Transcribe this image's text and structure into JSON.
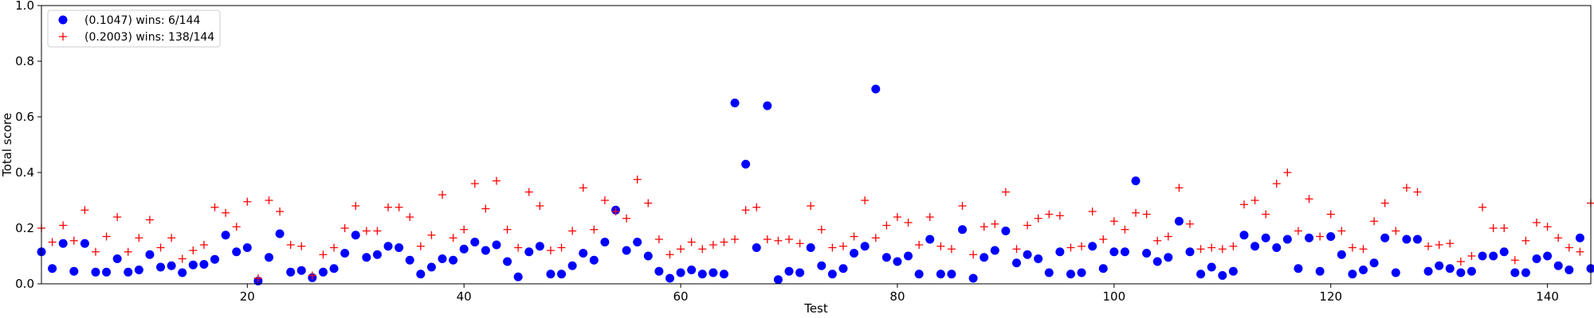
{
  "chart_data": {
    "type": "scatter",
    "xlabel": "Test",
    "ylabel": "Total score",
    "xlim": [
      1,
      144
    ],
    "ylim": [
      0,
      1
    ],
    "xticks": [
      20,
      40,
      60,
      80,
      100,
      120,
      140
    ],
    "yticks": [
      0.0,
      0.2,
      0.4,
      0.6,
      0.8,
      1.0
    ],
    "ytick_labels": [
      "0.0",
      "0.2",
      "0.4",
      "0.6",
      "0.8",
      "1.0"
    ],
    "grid": false,
    "legend_position": "top-left",
    "series": [
      {
        "name": "(0.1047) wins: 6/144",
        "marker": "circle",
        "color": "#0000ff",
        "x": [
          1,
          2,
          3,
          4,
          5,
          6,
          7,
          8,
          9,
          10,
          11,
          12,
          13,
          14,
          15,
          16,
          17,
          18,
          19,
          20,
          21,
          22,
          23,
          24,
          25,
          26,
          27,
          28,
          29,
          30,
          31,
          32,
          33,
          34,
          35,
          36,
          37,
          38,
          39,
          40,
          41,
          42,
          43,
          44,
          45,
          46,
          47,
          48,
          49,
          50,
          51,
          52,
          53,
          54,
          55,
          56,
          57,
          58,
          59,
          60,
          61,
          62,
          63,
          64,
          65,
          66,
          67,
          68,
          69,
          70,
          71,
          72,
          73,
          74,
          75,
          76,
          77,
          78,
          79,
          80,
          81,
          82,
          83,
          84,
          85,
          86,
          87,
          88,
          89,
          90,
          91,
          92,
          93,
          94,
          95,
          96,
          97,
          98,
          99,
          100,
          101,
          102,
          103,
          104,
          105,
          106,
          107,
          108,
          109,
          110,
          111,
          112,
          113,
          114,
          115,
          116,
          117,
          118,
          119,
          120,
          121,
          122,
          123,
          124,
          125,
          126,
          127,
          128,
          129,
          130,
          131,
          132,
          133,
          134,
          135,
          136,
          137,
          138,
          139,
          140,
          141,
          142,
          143,
          144
        ],
        "y": [
          0.115,
          0.055,
          0.145,
          0.045,
          0.145,
          0.042,
          0.042,
          0.09,
          0.042,
          0.05,
          0.105,
          0.06,
          0.065,
          0.04,
          0.068,
          0.07,
          0.088,
          0.175,
          0.115,
          0.13,
          0.01,
          0.095,
          0.18,
          0.042,
          0.048,
          0.022,
          0.042,
          0.055,
          0.11,
          0.175,
          0.095,
          0.105,
          0.135,
          0.13,
          0.085,
          0.035,
          0.06,
          0.09,
          0.085,
          0.125,
          0.15,
          0.12,
          0.14,
          0.08,
          0.025,
          0.115,
          0.135,
          0.035,
          0.035,
          0.065,
          0.11,
          0.085,
          0.15,
          0.265,
          0.12,
          0.15,
          0.1,
          0.045,
          0.02,
          0.04,
          0.05,
          0.035,
          0.04,
          0.035,
          0.65,
          0.43,
          0.13,
          0.64,
          0.015,
          0.045,
          0.04,
          0.13,
          0.065,
          0.035,
          0.055,
          0.11,
          0.135,
          0.7,
          0.095,
          0.08,
          0.1,
          0.035,
          0.16,
          0.035,
          0.035,
          0.195,
          0.02,
          0.095,
          0.12,
          0.19,
          0.075,
          0.105,
          0.09,
          0.04,
          0.115,
          0.035,
          0.04,
          0.135,
          0.055,
          0.115,
          0.115,
          0.37,
          0.11,
          0.08,
          0.095,
          0.225,
          0.115,
          0.035,
          0.06,
          0.03,
          0.045,
          0.175,
          0.135,
          0.165,
          0.13,
          0.16,
          0.055,
          0.165,
          0.045,
          0.17,
          0.105,
          0.035,
          0.05,
          0.075,
          0.165,
          0.04,
          0.16,
          0.16,
          0.045,
          0.065,
          0.055,
          0.04,
          0.045,
          0.1,
          0.1,
          0.115,
          0.04,
          0.04,
          0.09,
          0.1,
          0.065,
          0.05,
          0.165,
          0.055
        ]
      },
      {
        "name": "(0.2003) wins: 138/144",
        "marker": "plus",
        "color": "#ff0000",
        "x": [
          1,
          2,
          3,
          4,
          5,
          6,
          7,
          8,
          9,
          10,
          11,
          12,
          13,
          14,
          15,
          16,
          17,
          18,
          19,
          20,
          21,
          22,
          23,
          24,
          25,
          26,
          27,
          28,
          29,
          30,
          31,
          32,
          33,
          34,
          35,
          36,
          37,
          38,
          39,
          40,
          41,
          42,
          43,
          44,
          45,
          46,
          47,
          48,
          49,
          50,
          51,
          52,
          53,
          54,
          55,
          56,
          57,
          58,
          59,
          60,
          61,
          62,
          63,
          64,
          65,
          66,
          67,
          68,
          69,
          70,
          71,
          72,
          73,
          74,
          75,
          76,
          77,
          78,
          79,
          80,
          81,
          82,
          83,
          84,
          85,
          86,
          87,
          88,
          89,
          90,
          91,
          92,
          93,
          94,
          95,
          96,
          97,
          98,
          99,
          100,
          101,
          102,
          103,
          104,
          105,
          106,
          107,
          108,
          109,
          110,
          111,
          112,
          113,
          114,
          115,
          116,
          117,
          118,
          119,
          120,
          121,
          122,
          123,
          124,
          125,
          126,
          127,
          128,
          129,
          130,
          131,
          132,
          133,
          134,
          135,
          136,
          137,
          138,
          139,
          140,
          141,
          142,
          143,
          144
        ],
        "y": [
          0.2,
          0.15,
          0.21,
          0.155,
          0.265,
          0.115,
          0.17,
          0.24,
          0.115,
          0.165,
          0.23,
          0.13,
          0.165,
          0.09,
          0.12,
          0.14,
          0.275,
          0.255,
          0.205,
          0.295,
          0.02,
          0.3,
          0.26,
          0.14,
          0.135,
          0.03,
          0.105,
          0.13,
          0.2,
          0.28,
          0.19,
          0.19,
          0.275,
          0.275,
          0.24,
          0.135,
          0.175,
          0.32,
          0.165,
          0.195,
          0.36,
          0.27,
          0.37,
          0.195,
          0.13,
          0.33,
          0.28,
          0.12,
          0.13,
          0.19,
          0.345,
          0.195,
          0.3,
          0.26,
          0.235,
          0.375,
          0.29,
          0.16,
          0.105,
          0.125,
          0.15,
          0.125,
          0.14,
          0.15,
          0.16,
          0.265,
          0.275,
          0.16,
          0.155,
          0.16,
          0.145,
          0.28,
          0.195,
          0.13,
          0.135,
          0.17,
          0.3,
          0.165,
          0.21,
          0.24,
          0.22,
          0.14,
          0.24,
          0.135,
          0.125,
          0.28,
          0.105,
          0.205,
          0.215,
          0.33,
          0.125,
          0.21,
          0.235,
          0.25,
          0.245,
          0.13,
          0.135,
          0.26,
          0.16,
          0.225,
          0.195,
          0.255,
          0.25,
          0.155,
          0.17,
          0.345,
          0.215,
          0.125,
          0.13,
          0.125,
          0.135,
          0.285,
          0.3,
          0.25,
          0.36,
          0.4,
          0.19,
          0.305,
          0.17,
          0.25,
          0.19,
          0.13,
          0.125,
          0.225,
          0.29,
          0.19,
          0.345,
          0.33,
          0.135,
          0.14,
          0.145,
          0.08,
          0.1,
          0.275,
          0.2,
          0.2,
          0.085,
          0.155,
          0.22,
          0.205,
          0.165,
          0.13,
          0.115,
          0.29
        ]
      }
    ]
  }
}
